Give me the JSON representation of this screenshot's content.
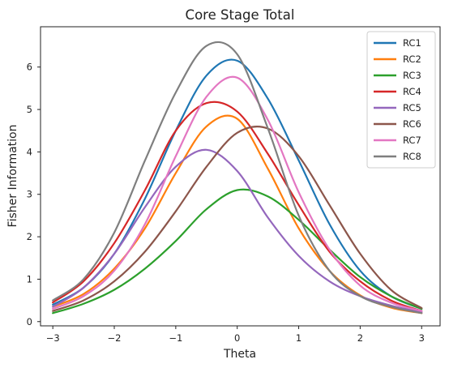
{
  "chart_data": {
    "type": "line",
    "title": "Core Stage Total",
    "xlabel": "Theta",
    "ylabel": "Fisher Information",
    "xlim": [
      -3.2,
      3.3
    ],
    "ylim": [
      -0.1,
      6.95
    ],
    "xticks": [
      -3,
      -2,
      -1,
      0,
      1,
      2,
      3
    ],
    "yticks": [
      0,
      1,
      2,
      3,
      4,
      5,
      6
    ],
    "grid": false,
    "legend_position": "top-right",
    "x": [
      -3.0,
      -2.5,
      -2.0,
      -1.5,
      -1.0,
      -0.5,
      0.0,
      0.5,
      1.0,
      1.5,
      2.0,
      2.5,
      3.0
    ],
    "series": [
      {
        "name": "RC1",
        "color": "#1f77b4",
        "values": [
          0.4,
          0.8,
          1.6,
          2.9,
          4.5,
          5.8,
          6.15,
          5.25,
          3.8,
          2.3,
          1.2,
          0.6,
          0.3
        ]
      },
      {
        "name": "RC2",
        "color": "#ff7f0e",
        "values": [
          0.35,
          0.65,
          1.25,
          2.2,
          3.5,
          4.6,
          4.78,
          3.6,
          2.2,
          1.2,
          0.62,
          0.33,
          0.2
        ]
      },
      {
        "name": "RC3",
        "color": "#2ca02c",
        "values": [
          0.2,
          0.42,
          0.75,
          1.25,
          1.9,
          2.65,
          3.1,
          2.95,
          2.4,
          1.7,
          1.05,
          0.6,
          0.3
        ]
      },
      {
        "name": "RC4",
        "color": "#d62728",
        "values": [
          0.45,
          0.95,
          1.85,
          3.1,
          4.5,
          5.15,
          4.95,
          3.95,
          2.75,
          1.65,
          0.95,
          0.5,
          0.25
        ]
      },
      {
        "name": "RC5",
        "color": "#9467bd",
        "values": [
          0.35,
          0.8,
          1.6,
          2.7,
          3.65,
          4.05,
          3.55,
          2.45,
          1.55,
          0.95,
          0.6,
          0.38,
          0.22
        ]
      },
      {
        "name": "RC6",
        "color": "#8c564b",
        "values": [
          0.25,
          0.5,
          0.95,
          1.65,
          2.6,
          3.65,
          4.45,
          4.55,
          3.9,
          2.75,
          1.6,
          0.75,
          0.32
        ]
      },
      {
        "name": "RC7",
        "color": "#e377c2",
        "values": [
          0.3,
          0.6,
          1.2,
          2.3,
          3.9,
          5.3,
          5.75,
          4.75,
          3.05,
          1.7,
          0.85,
          0.45,
          0.25
        ]
      },
      {
        "name": "RC8",
        "color": "#7f7f7f",
        "values": [
          0.5,
          1.0,
          2.1,
          3.8,
          5.4,
          6.5,
          6.3,
          4.55,
          2.5,
          1.2,
          0.6,
          0.35,
          0.2
        ]
      }
    ]
  }
}
